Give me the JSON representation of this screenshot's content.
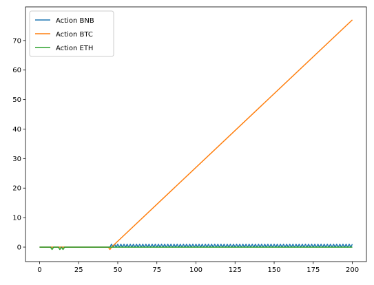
{
  "chart_data": {
    "type": "line",
    "title": "",
    "xlabel": "",
    "ylabel": "",
    "xlim": [
      -9,
      209
    ],
    "ylim": [
      -4.9,
      81.4
    ],
    "x_ticks": [
      0,
      25,
      50,
      75,
      100,
      125,
      150,
      175,
      200
    ],
    "y_ticks": [
      0,
      10,
      20,
      30,
      40,
      50,
      60,
      70
    ],
    "grid": false,
    "legend_position": "upper-left",
    "series": [
      {
        "name": "Action BNB",
        "color": "#1f77b4",
        "description_pattern": "zero until x=45, then alternates between 0 and 1 on each step up to x=200",
        "start_alternating_x": 45
      },
      {
        "name": "Action BTC",
        "color": "#ff7f0e",
        "points": [
          [
            0,
            0
          ],
          [
            44,
            0
          ],
          [
            45,
            -0.8
          ],
          [
            46,
            0
          ],
          [
            200,
            77
          ]
        ]
      },
      {
        "name": "Action ETH",
        "color": "#2ca02c",
        "points": [
          [
            0,
            0
          ],
          [
            7,
            0
          ],
          [
            8,
            -0.8
          ],
          [
            9,
            0
          ],
          [
            12,
            0
          ],
          [
            13,
            -0.8
          ],
          [
            14,
            0
          ],
          [
            15,
            -0.8
          ],
          [
            16,
            0
          ],
          [
            200,
            0
          ]
        ]
      }
    ]
  }
}
